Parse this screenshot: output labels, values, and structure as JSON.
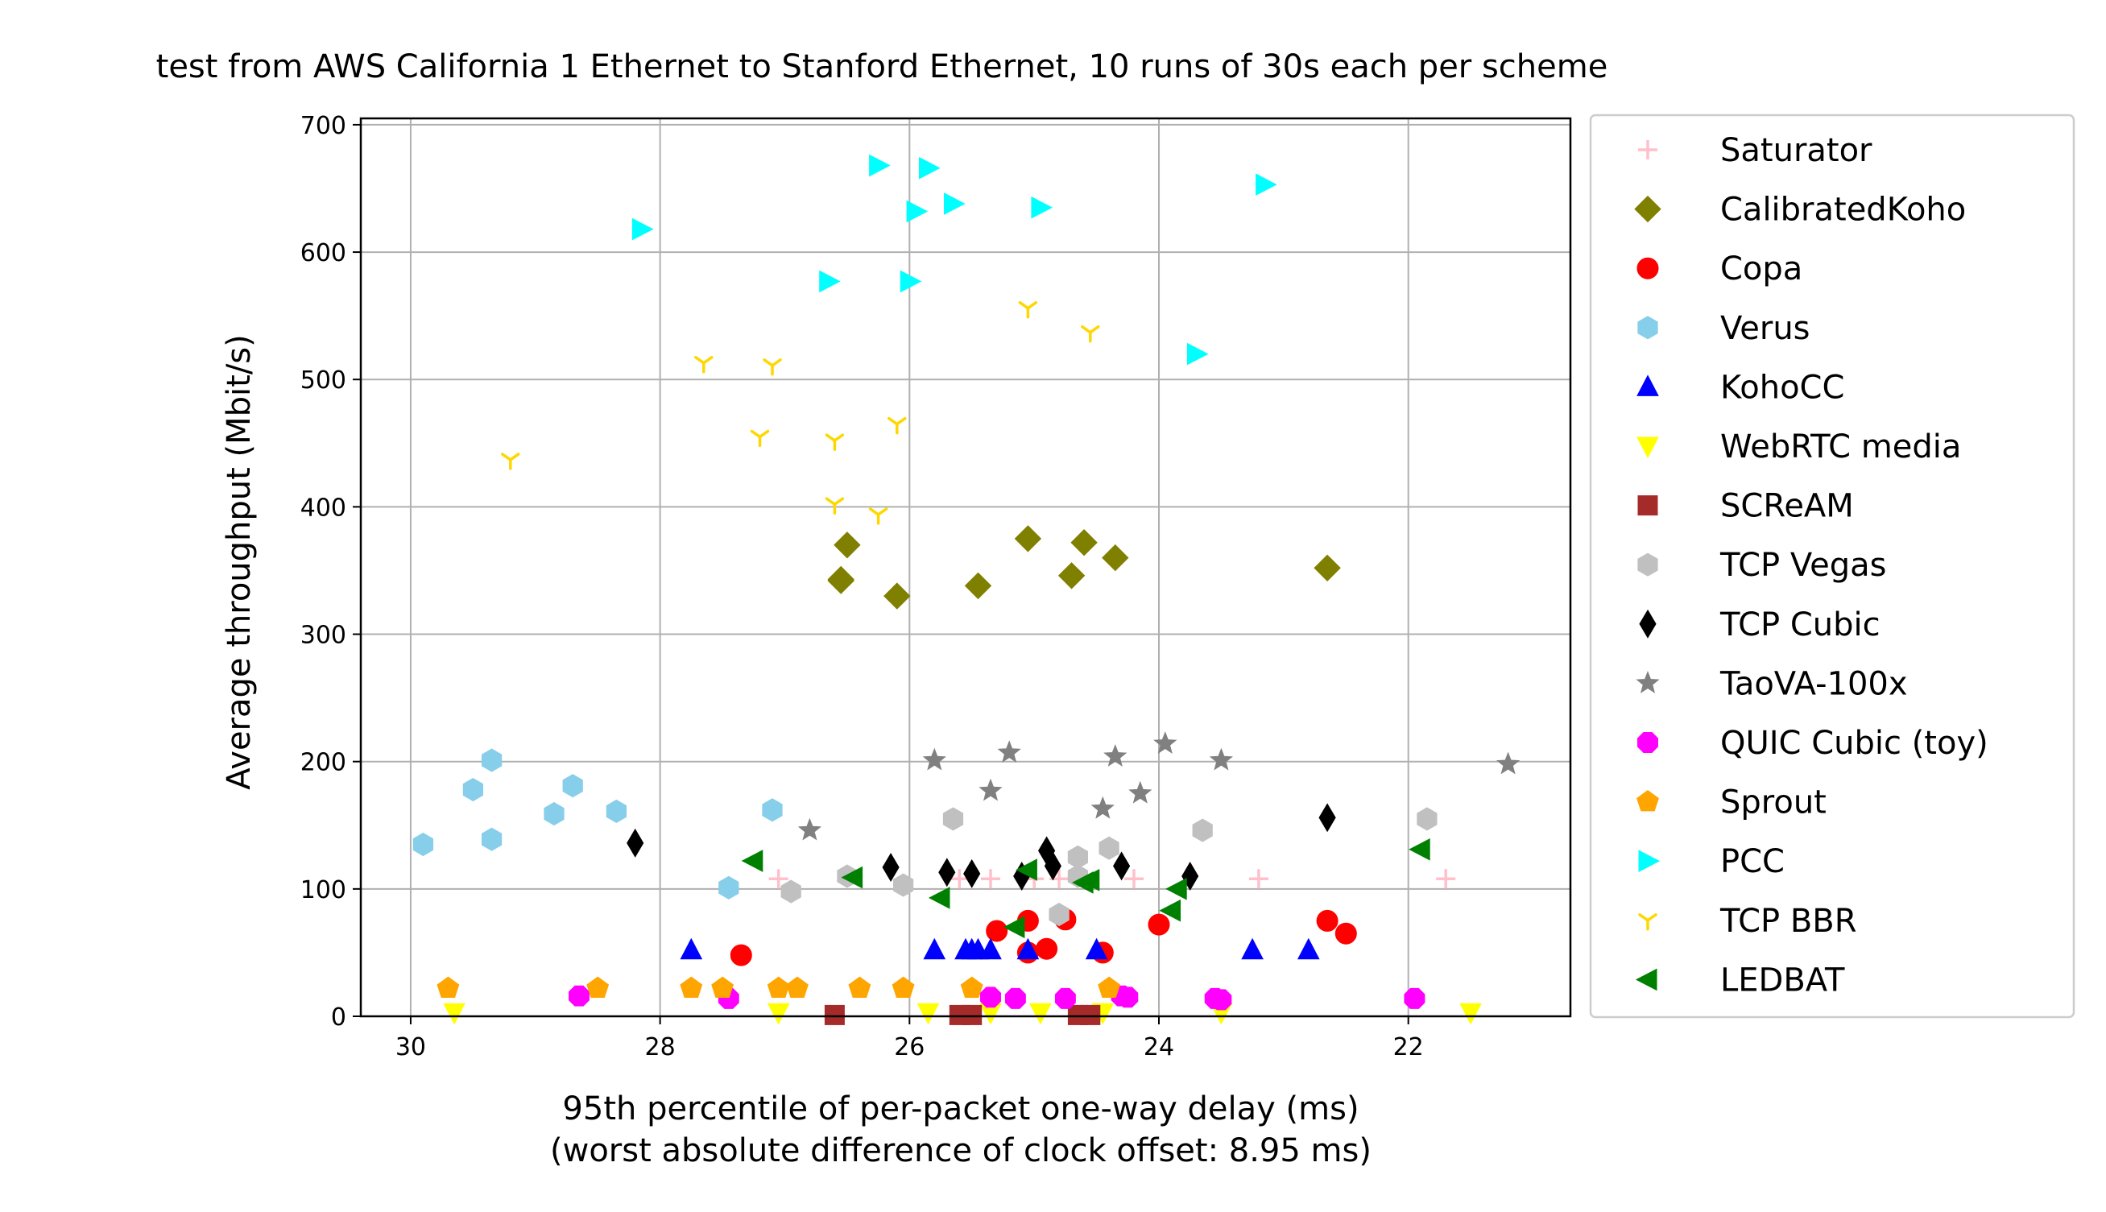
{
  "chart_data": {
    "type": "scatter",
    "title": "test from AWS California 1 Ethernet to Stanford Ethernet, 10 runs of 30s each per scheme",
    "xlabel": "95th percentile of per-packet one-way delay (ms)",
    "xlabel2": "(worst absolute difference of clock offset: 8.95 ms)",
    "ylabel": "Average throughput (Mbit/s)",
    "xlim": [
      30.4,
      20.7
    ],
    "ylim": [
      0,
      705
    ],
    "x_ticks": [
      30,
      28,
      26,
      24,
      22
    ],
    "x_tick_labels": [
      "30",
      "28",
      "26",
      "24",
      "22"
    ],
    "y_ticks": [
      0,
      100,
      200,
      300,
      400,
      500,
      600,
      700
    ],
    "y_tick_labels": [
      "0",
      "100",
      "200",
      "300",
      "400",
      "500",
      "600",
      "700"
    ],
    "grid": true,
    "legend_position": "outside-right",
    "series": [
      {
        "name": "Saturator",
        "marker": "plus",
        "color": "#ffc0cb",
        "points": [
          [
            27.05,
            108
          ],
          [
            25.35,
            108
          ],
          [
            25.0,
            108
          ],
          [
            24.8,
            108
          ],
          [
            24.2,
            108
          ],
          [
            23.2,
            108
          ],
          [
            21.7,
            108
          ],
          [
            25.6,
            108
          ]
        ]
      },
      {
        "name": "CalibratedKoho",
        "marker": "diamond",
        "color": "#808000",
        "points": [
          [
            26.55,
            343
          ],
          [
            26.5,
            370
          ],
          [
            26.1,
            330
          ],
          [
            25.45,
            338
          ],
          [
            25.05,
            375
          ],
          [
            24.7,
            346
          ],
          [
            24.6,
            372
          ],
          [
            24.35,
            360
          ],
          [
            22.65,
            352
          ],
          [
            26.55,
            342
          ]
        ]
      },
      {
        "name": "Copa",
        "marker": "circle",
        "color": "#ff0000",
        "points": [
          [
            27.35,
            48
          ],
          [
            25.3,
            67
          ],
          [
            25.05,
            75
          ],
          [
            25.05,
            50
          ],
          [
            24.9,
            53
          ],
          [
            24.75,
            76
          ],
          [
            24.45,
            50
          ],
          [
            24.0,
            72
          ],
          [
            22.65,
            75
          ],
          [
            22.5,
            65
          ]
        ]
      },
      {
        "name": "Verus",
        "marker": "hexagon",
        "color": "#87ceeb",
        "points": [
          [
            29.9,
            135
          ],
          [
            29.5,
            178
          ],
          [
            29.35,
            201
          ],
          [
            29.35,
            139
          ],
          [
            28.85,
            159
          ],
          [
            28.7,
            181
          ],
          [
            28.35,
            161
          ],
          [
            27.45,
            101
          ],
          [
            27.1,
            162
          ]
        ]
      },
      {
        "name": "KohoCC",
        "marker": "triangle-up",
        "color": "#0000ff",
        "points": [
          [
            27.75,
            52
          ],
          [
            25.8,
            52
          ],
          [
            25.55,
            52
          ],
          [
            25.45,
            52
          ],
          [
            25.35,
            52
          ],
          [
            25.05,
            52
          ],
          [
            24.5,
            52
          ],
          [
            23.25,
            52
          ],
          [
            22.8,
            52
          ],
          [
            25.5,
            52
          ]
        ]
      },
      {
        "name": "WebRTC media",
        "marker": "triangle-down",
        "color": "#ffff00",
        "points": [
          [
            29.65,
            3
          ],
          [
            27.05,
            3
          ],
          [
            25.85,
            3
          ],
          [
            25.35,
            3
          ],
          [
            24.95,
            3
          ],
          [
            24.45,
            3
          ],
          [
            23.5,
            3
          ],
          [
            21.5,
            3
          ]
        ]
      },
      {
        "name": "SCReAM",
        "marker": "square",
        "color": "#a52a2a",
        "points": [
          [
            26.6,
            1
          ],
          [
            25.6,
            1
          ],
          [
            25.5,
            1
          ],
          [
            24.65,
            1
          ],
          [
            24.55,
            1
          ]
        ]
      },
      {
        "name": "TCP Vegas",
        "marker": "hexagon",
        "color": "#c0c0c0",
        "points": [
          [
            26.95,
            98
          ],
          [
            26.05,
            103
          ],
          [
            25.65,
            155
          ],
          [
            24.65,
            125
          ],
          [
            24.8,
            80
          ],
          [
            24.65,
            110
          ],
          [
            24.4,
            132
          ],
          [
            23.65,
            146
          ],
          [
            21.85,
            155
          ],
          [
            26.5,
            110
          ]
        ]
      },
      {
        "name": "TCP Cubic",
        "marker": "thin-diamond",
        "color": "#000000",
        "points": [
          [
            28.2,
            136
          ],
          [
            26.15,
            117
          ],
          [
            25.7,
            113
          ],
          [
            25.5,
            112
          ],
          [
            25.1,
            110
          ],
          [
            24.9,
            130
          ],
          [
            24.85,
            118
          ],
          [
            24.3,
            118
          ],
          [
            23.75,
            110
          ],
          [
            22.65,
            156
          ]
        ]
      },
      {
        "name": "TaoVA-100x",
        "marker": "star",
        "color": "#808080",
        "points": [
          [
            26.8,
            146
          ],
          [
            25.8,
            201
          ],
          [
            25.35,
            177
          ],
          [
            25.2,
            207
          ],
          [
            24.45,
            163
          ],
          [
            24.35,
            204
          ],
          [
            24.15,
            175
          ],
          [
            23.95,
            214
          ],
          [
            23.5,
            201
          ],
          [
            21.2,
            198
          ]
        ]
      },
      {
        "name": "QUIC Cubic (toy)",
        "marker": "octagon",
        "color": "#ff00ff",
        "points": [
          [
            28.65,
            16
          ],
          [
            27.45,
            14
          ],
          [
            25.35,
            15
          ],
          [
            25.15,
            14
          ],
          [
            24.75,
            14
          ],
          [
            24.3,
            16
          ],
          [
            24.25,
            15
          ],
          [
            23.55,
            14
          ],
          [
            23.5,
            13
          ],
          [
            21.95,
            14
          ]
        ]
      },
      {
        "name": "Sprout",
        "marker": "pentagon",
        "color": "#ffa500",
        "points": [
          [
            29.7,
            22
          ],
          [
            28.5,
            22
          ],
          [
            27.75,
            22
          ],
          [
            27.5,
            22
          ],
          [
            27.05,
            22
          ],
          [
            26.9,
            22
          ],
          [
            26.4,
            22
          ],
          [
            26.05,
            22
          ],
          [
            25.5,
            22
          ],
          [
            24.4,
            22
          ]
        ]
      },
      {
        "name": "PCC",
        "marker": "triangle-right",
        "color": "#00ffff",
        "points": [
          [
            28.15,
            618
          ],
          [
            26.65,
            577
          ],
          [
            26.25,
            668
          ],
          [
            25.95,
            632
          ],
          [
            26.0,
            577
          ],
          [
            25.85,
            666
          ],
          [
            25.65,
            638
          ],
          [
            24.95,
            635
          ],
          [
            23.7,
            520
          ],
          [
            23.15,
            653
          ]
        ]
      },
      {
        "name": "TCP BBR",
        "marker": "tri-down",
        "color": "#ffd700",
        "points": [
          [
            29.2,
            437
          ],
          [
            27.65,
            513
          ],
          [
            27.2,
            455
          ],
          [
            27.1,
            511
          ],
          [
            26.6,
            452
          ],
          [
            26.6,
            402
          ],
          [
            26.25,
            394
          ],
          [
            26.1,
            465
          ],
          [
            25.05,
            556
          ],
          [
            24.55,
            537
          ]
        ]
      },
      {
        "name": "LEDBAT",
        "marker": "triangle-left",
        "color": "#008000",
        "points": [
          [
            27.25,
            122
          ],
          [
            26.45,
            109
          ],
          [
            25.75,
            93
          ],
          [
            25.15,
            70
          ],
          [
            25.05,
            115
          ],
          [
            24.6,
            105
          ],
          [
            24.55,
            107
          ],
          [
            23.9,
            83
          ],
          [
            23.85,
            100
          ],
          [
            21.9,
            131
          ]
        ]
      }
    ]
  }
}
